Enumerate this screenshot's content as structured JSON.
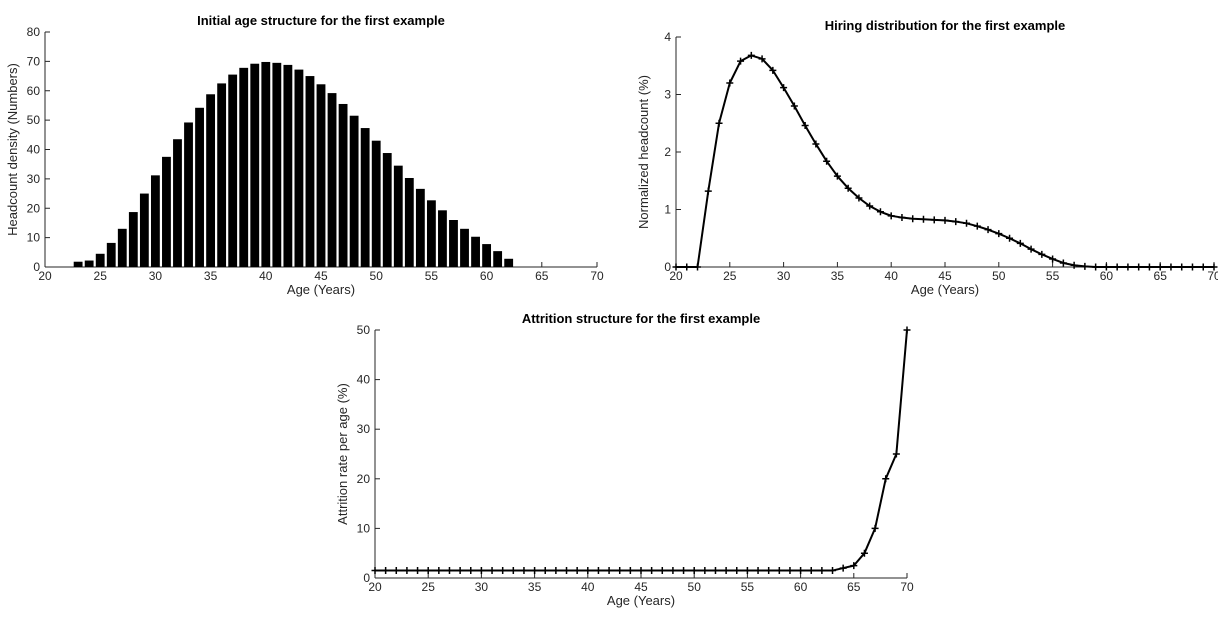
{
  "chart_data": [
    {
      "type": "bar",
      "title": "Initial age structure for the first example",
      "xlabel": "Age (Years)",
      "ylabel": "Headcount density (Numbers)",
      "xlim": [
        20,
        70
      ],
      "ylim": [
        0,
        80
      ],
      "xticks": [
        20,
        25,
        30,
        35,
        40,
        45,
        50,
        55,
        60,
        65,
        70
      ],
      "yticks": [
        0,
        10,
        20,
        30,
        40,
        50,
        60,
        70,
        80
      ],
      "grid": false,
      "bar_color": "#000000",
      "x": [
        23,
        24,
        25,
        26,
        27,
        28,
        29,
        30,
        31,
        32,
        33,
        34,
        35,
        36,
        37,
        38,
        39,
        40,
        41,
        42,
        43,
        44,
        45,
        46,
        47,
        48,
        49,
        50,
        51,
        52,
        53,
        54,
        55,
        56,
        57,
        58,
        59,
        60,
        61,
        62
      ],
      "values": [
        1.8,
        2.2,
        4.5,
        8.2,
        13,
        18.7,
        25,
        31.2,
        37.5,
        43.5,
        49.2,
        54.2,
        58.8,
        62.5,
        65.5,
        67.8,
        69.2,
        69.8,
        69.5,
        68.8,
        67.2,
        65,
        62.2,
        59.2,
        55.5,
        51.5,
        47.3,
        43,
        38.8,
        34.5,
        30.3,
        26.6,
        22.7,
        19.3,
        16,
        13,
        10.3,
        7.8,
        5.4,
        2.8
      ]
    },
    {
      "type": "line",
      "title": "Hiring distribution for the first example",
      "xlabel": "Age (Years)",
      "ylabel": "Normalized headcount (%)",
      "xlim": [
        20,
        70
      ],
      "ylim": [
        0,
        4
      ],
      "xticks": [
        20,
        25,
        30,
        35,
        40,
        45,
        50,
        55,
        60,
        65,
        70
      ],
      "yticks": [
        0,
        1,
        2,
        3,
        4
      ],
      "grid": false,
      "marker": "+",
      "line_color": "#000000",
      "x": [
        20,
        21,
        22,
        23,
        24,
        25,
        26,
        27,
        28,
        29,
        30,
        31,
        32,
        33,
        34,
        35,
        36,
        37,
        38,
        39,
        40,
        41,
        42,
        43,
        44,
        45,
        46,
        47,
        48,
        49,
        50,
        51,
        52,
        53,
        54,
        55,
        56,
        57,
        58,
        59,
        60,
        61,
        62,
        63,
        64,
        65,
        66,
        67,
        68,
        69,
        70
      ],
      "y": [
        0,
        0,
        0,
        1.32,
        2.5,
        3.2,
        3.58,
        3.68,
        3.62,
        3.42,
        3.12,
        2.8,
        2.46,
        2.14,
        1.84,
        1.58,
        1.37,
        1.2,
        1.06,
        0.96,
        0.89,
        0.86,
        0.84,
        0.83,
        0.82,
        0.81,
        0.79,
        0.76,
        0.71,
        0.65,
        0.58,
        0.5,
        0.41,
        0.31,
        0.22,
        0.14,
        0.07,
        0.03,
        0.01,
        0,
        0,
        0,
        0,
        0,
        0,
        0,
        0,
        0,
        0,
        0,
        0
      ]
    },
    {
      "type": "line",
      "title": "Attrition structure for the first example",
      "xlabel": "Age (Years)",
      "ylabel": "Attrition rate per age (%)",
      "xlim": [
        20,
        70
      ],
      "ylim": [
        0,
        50
      ],
      "xticks": [
        20,
        25,
        30,
        35,
        40,
        45,
        50,
        55,
        60,
        65,
        70
      ],
      "yticks": [
        0,
        10,
        20,
        30,
        40,
        50
      ],
      "grid": false,
      "marker": "+",
      "line_color": "#000000",
      "x": [
        20,
        21,
        22,
        23,
        24,
        25,
        26,
        27,
        28,
        29,
        30,
        31,
        32,
        33,
        34,
        35,
        36,
        37,
        38,
        39,
        40,
        41,
        42,
        43,
        44,
        45,
        46,
        47,
        48,
        49,
        50,
        51,
        52,
        53,
        54,
        55,
        56,
        57,
        58,
        59,
        60,
        61,
        62,
        63,
        64,
        65,
        66,
        67,
        68,
        69,
        70
      ],
      "y": [
        1.5,
        1.5,
        1.5,
        1.5,
        1.5,
        1.5,
        1.5,
        1.5,
        1.5,
        1.5,
        1.5,
        1.5,
        1.5,
        1.5,
        1.5,
        1.5,
        1.5,
        1.5,
        1.5,
        1.5,
        1.5,
        1.5,
        1.5,
        1.5,
        1.5,
        1.5,
        1.5,
        1.5,
        1.5,
        1.5,
        1.5,
        1.5,
        1.5,
        1.5,
        1.5,
        1.5,
        1.5,
        1.5,
        1.5,
        1.5,
        1.5,
        1.5,
        1.5,
        1.5,
        2,
        2.5,
        5,
        10,
        20,
        25,
        50
      ]
    }
  ]
}
